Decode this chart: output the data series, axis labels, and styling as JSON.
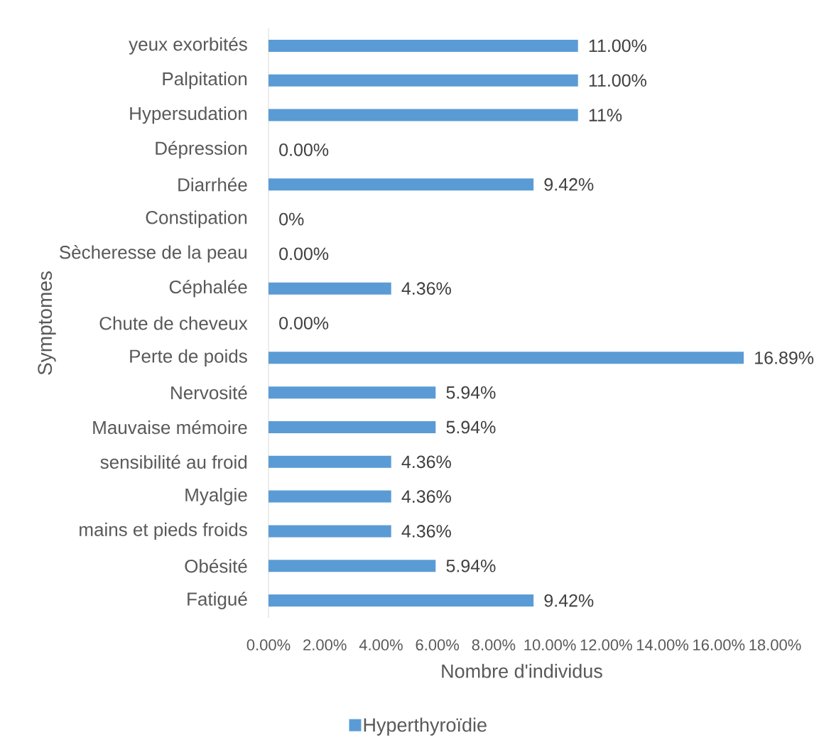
{
  "chart_data": {
    "type": "bar",
    "orientation": "horizontal",
    "xlabel": "Nombre d'individus",
    "ylabel": "Symptomes",
    "categories": [
      "yeux exorbités",
      "Palpitation",
      "Hypersudation",
      "Dépression",
      "Diarrhée",
      "Constipation",
      "Sècheresse de la peau",
      "Céphalée",
      "Chute de cheveux",
      "Perte de poids",
      "Nervosité",
      "Mauvaise mémoire",
      "sensibilité au froid",
      "Myalgie",
      "mains et pieds froids",
      "Obésité",
      "Fatigué"
    ],
    "series": [
      {
        "name": "Hyperthyroïdie",
        "color": "#5b9bd5",
        "values": [
          11,
          11,
          11,
          0,
          9.42,
          0,
          0,
          4.36,
          0,
          16.89,
          5.94,
          5.94,
          4.36,
          4.36,
          4.36,
          5.94,
          9.42
        ],
        "value_labels": [
          "11.00%",
          "11.00%",
          "11%",
          "0.00%",
          "9.42%",
          "0%",
          "0.00%",
          "4.36%",
          "0.00%",
          "16.89%",
          "5.94%",
          "5.94%",
          "4.36%",
          "4.36%",
          "4.36%",
          "5.94%",
          "9.42%"
        ]
      }
    ],
    "xlim": [
      0,
      18
    ],
    "xticks": [
      {
        "value": 0,
        "label": "0.00%"
      },
      {
        "value": 2,
        "label": "2.00%"
      },
      {
        "value": 4,
        "label": "4.00%"
      },
      {
        "value": 6,
        "label": "6.00%"
      },
      {
        "value": 8,
        "label": "8.00%"
      },
      {
        "value": 10,
        "label": "10.00%"
      },
      {
        "value": 12,
        "label": "12.00%"
      },
      {
        "value": 14,
        "label": "14.00%"
      },
      {
        "value": 16,
        "label": "16.00%"
      },
      {
        "value": 18,
        "label": "18.00%"
      }
    ],
    "legend": "bottom"
  }
}
